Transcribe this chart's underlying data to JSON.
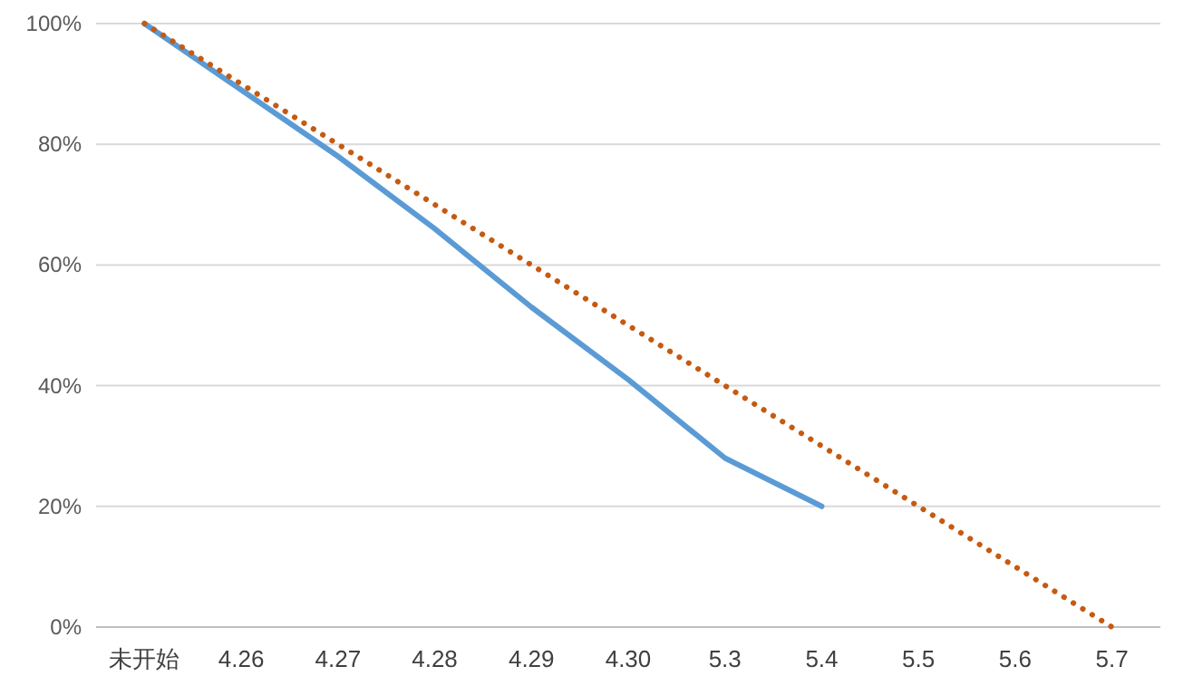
{
  "chart_data": {
    "type": "line",
    "categories": [
      "未开始",
      "4.26",
      "4.27",
      "4.28",
      "4.29",
      "4.30",
      "5.3",
      "5.4",
      "5.5",
      "5.6",
      "5.7"
    ],
    "series": [
      {
        "color": "#5b9bd5",
        "line_style": "solid",
        "values": [
          100,
          89,
          78,
          66,
          53,
          41,
          28,
          20,
          null,
          null,
          null
        ]
      },
      {
        "color": "#c55a11",
        "line_style": "dotted",
        "values": [
          100,
          90,
          80,
          70,
          60,
          50,
          40,
          30,
          20,
          10,
          0
        ]
      }
    ],
    "ylim": [
      0,
      100
    ],
    "yticks": [
      {
        "value": 0,
        "label": "0%"
      },
      {
        "value": 20,
        "label": "20%"
      },
      {
        "value": 40,
        "label": "40%"
      },
      {
        "value": 60,
        "label": "60%"
      },
      {
        "value": 80,
        "label": "80%"
      },
      {
        "value": 100,
        "label": "100%"
      }
    ],
    "grid": "y",
    "marker": "none"
  }
}
